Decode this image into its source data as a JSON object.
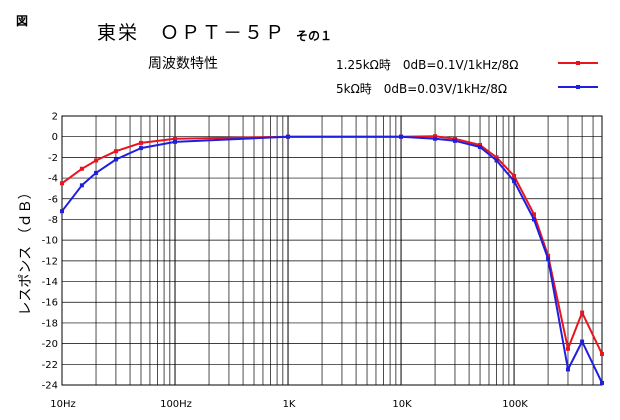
{
  "figure_label": "図",
  "title": "東栄　ＯＰＴ－５Ｐ",
  "subtitle": "その１",
  "chart_title": "周波数特性",
  "colors": {
    "series1": "#e8141e",
    "series2": "#1f1fe0",
    "grid": "#000000"
  },
  "chart_data": {
    "type": "line",
    "xscale": "log",
    "xlim": [
      10,
      600000
    ],
    "ylim": [
      -24,
      2
    ],
    "grid": true,
    "ylabel": "レスポンス （ｄＢ）",
    "xlabel": "",
    "xticks": [
      {
        "value": 10,
        "label": "10Hz"
      },
      {
        "value": 100,
        "label": "100Hz"
      },
      {
        "value": 1000,
        "label": "1K"
      },
      {
        "value": 10000,
        "label": "10K"
      },
      {
        "value": 100000,
        "label": "100K"
      }
    ],
    "yticks": [
      2,
      0,
      -2,
      -4,
      -6,
      -8,
      -10,
      -12,
      -14,
      -16,
      -18,
      -20,
      -22,
      -24
    ],
    "legend_position": "top-right",
    "series": [
      {
        "name": "1.25kΩ時　0dB=0.1V/1kHz/8Ω",
        "color": "#e8141e",
        "x": [
          10,
          15,
          20,
          30,
          50,
          100,
          1000,
          10000,
          20000,
          30000,
          50000,
          70000,
          100000,
          150000,
          200000,
          300000,
          400000,
          600000
        ],
        "y": [
          -4.5,
          -3.1,
          -2.3,
          -1.4,
          -0.6,
          -0.2,
          0,
          0,
          0.05,
          -0.2,
          -0.8,
          -2.0,
          -3.8,
          -7.5,
          -11.5,
          -20.5,
          -17,
          -21
        ]
      },
      {
        "name": "5kΩ時　0dB=0.03V/1kHz/8Ω",
        "color": "#1f1fe0",
        "x": [
          10,
          15,
          20,
          30,
          50,
          100,
          1000,
          10000,
          20000,
          30000,
          50000,
          70000,
          100000,
          150000,
          200000,
          300000,
          400000,
          600000
        ],
        "y": [
          -7.2,
          -4.7,
          -3.5,
          -2.2,
          -1.1,
          -0.5,
          0,
          0,
          -0.2,
          -0.4,
          -1.0,
          -2.3,
          -4.3,
          -8.0,
          -11.8,
          -22.5,
          -19.8,
          -23.8
        ]
      }
    ]
  }
}
